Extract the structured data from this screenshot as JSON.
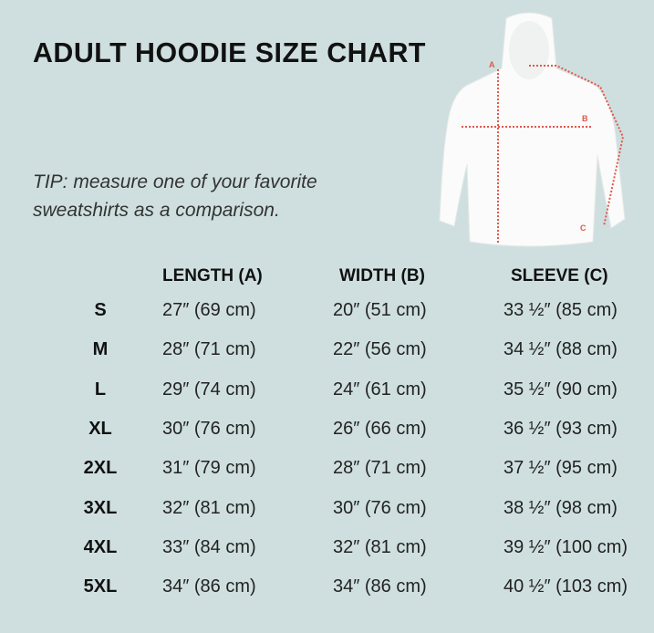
{
  "title": "ADULT HOODIE SIZE CHART",
  "tip": "TIP: measure one of your favorite sweatshirts as a comparison.",
  "diagram": {
    "labels": [
      "A",
      "B",
      "C"
    ],
    "marker_color": "#e0584a",
    "garment": "white hoodie"
  },
  "colors": {
    "background": "#cfdfdf",
    "text": "#111111"
  },
  "table": {
    "headers": [
      "LENGTH (A)",
      "WIDTH (B)",
      "SLEEVE (C)"
    ],
    "rows": [
      {
        "size": "S",
        "length": "27″ (69 cm)",
        "width": "20″ (51 cm)",
        "sleeve": "33 ½″ (85 cm)"
      },
      {
        "size": "M",
        "length": "28″ (71 cm)",
        "width": "22″ (56 cm)",
        "sleeve": "34 ½″ (88 cm)"
      },
      {
        "size": "L",
        "length": "29″ (74 cm)",
        "width": "24″ (61 cm)",
        "sleeve": "35 ½″ (90 cm)"
      },
      {
        "size": "XL",
        "length": "30″ (76 cm)",
        "width": "26″ (66 cm)",
        "sleeve": "36 ½″ (93 cm)"
      },
      {
        "size": "2XL",
        "length": "31″ (79 cm)",
        "width": "28″ (71 cm)",
        "sleeve": "37 ½″ (95 cm)"
      },
      {
        "size": "3XL",
        "length": "32″ (81 cm)",
        "width": "30″ (76 cm)",
        "sleeve": "38 ½″ (98 cm)"
      },
      {
        "size": "4XL",
        "length": "33″ (84 cm)",
        "width": "32″ (81 cm)",
        "sleeve": "39 ½″ (100 cm)"
      },
      {
        "size": "5XL",
        "length": "34″ (86 cm)",
        "width": "34″ (86 cm)",
        "sleeve": "40 ½″ (103 cm)"
      }
    ]
  }
}
